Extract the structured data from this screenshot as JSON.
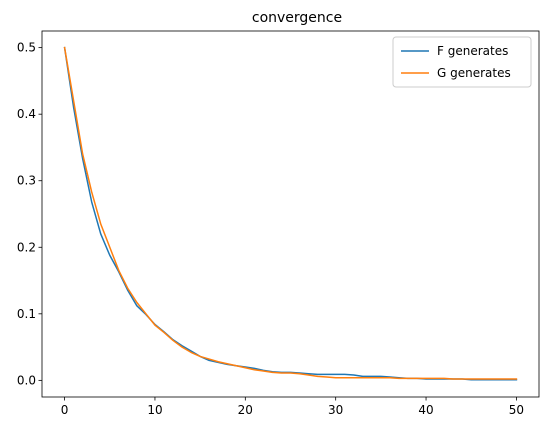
{
  "chart_data": {
    "type": "line",
    "title": "convergence",
    "xlabel": "",
    "ylabel": "",
    "xlim": [
      -2.5,
      52.5
    ],
    "ylim": [
      -0.025,
      0.525
    ],
    "xticks": [
      0,
      10,
      20,
      30,
      40,
      50
    ],
    "xtick_labels": [
      "0",
      "10",
      "20",
      "30",
      "40",
      "50"
    ],
    "yticks": [
      0.0,
      0.1,
      0.2,
      0.3,
      0.4,
      0.5
    ],
    "ytick_labels": [
      "0.0",
      "0.1",
      "0.2",
      "0.3",
      "0.4",
      "0.5"
    ],
    "grid": false,
    "legend_position": "top-right",
    "x": [
      0,
      1,
      2,
      3,
      4,
      5,
      6,
      7,
      8,
      9,
      10,
      11,
      12,
      13,
      14,
      15,
      16,
      17,
      18,
      19,
      20,
      21,
      22,
      23,
      24,
      25,
      26,
      27,
      28,
      29,
      30,
      31,
      32,
      33,
      34,
      35,
      36,
      37,
      38,
      39,
      40,
      41,
      42,
      43,
      44,
      45,
      46,
      47,
      48,
      49,
      50
    ],
    "series": [
      {
        "name": "F generates",
        "color": "#1f77b4",
        "values": [
          0.5,
          0.41,
          0.333,
          0.268,
          0.22,
          0.188,
          0.163,
          0.135,
          0.112,
          0.099,
          0.084,
          0.073,
          0.061,
          0.052,
          0.044,
          0.036,
          0.03,
          0.027,
          0.024,
          0.022,
          0.02,
          0.018,
          0.015,
          0.013,
          0.012,
          0.012,
          0.011,
          0.01,
          0.009,
          0.009,
          0.009,
          0.009,
          0.008,
          0.006,
          0.006,
          0.006,
          0.005,
          0.004,
          0.003,
          0.003,
          0.002,
          0.002,
          0.002,
          0.002,
          0.002,
          0.001,
          0.001,
          0.001,
          0.001,
          0.001,
          0.001
        ]
      },
      {
        "name": "G generates",
        "color": "#ff7f0e",
        "values": [
          0.5,
          0.42,
          0.34,
          0.283,
          0.235,
          0.2,
          0.165,
          0.138,
          0.117,
          0.1,
          0.083,
          0.072,
          0.06,
          0.05,
          0.042,
          0.036,
          0.032,
          0.028,
          0.025,
          0.022,
          0.019,
          0.016,
          0.014,
          0.012,
          0.011,
          0.011,
          0.01,
          0.008,
          0.006,
          0.005,
          0.004,
          0.004,
          0.004,
          0.004,
          0.004,
          0.004,
          0.004,
          0.003,
          0.003,
          0.003,
          0.003,
          0.003,
          0.003,
          0.002,
          0.002,
          0.002,
          0.002,
          0.002,
          0.002,
          0.002,
          0.002
        ]
      }
    ]
  }
}
